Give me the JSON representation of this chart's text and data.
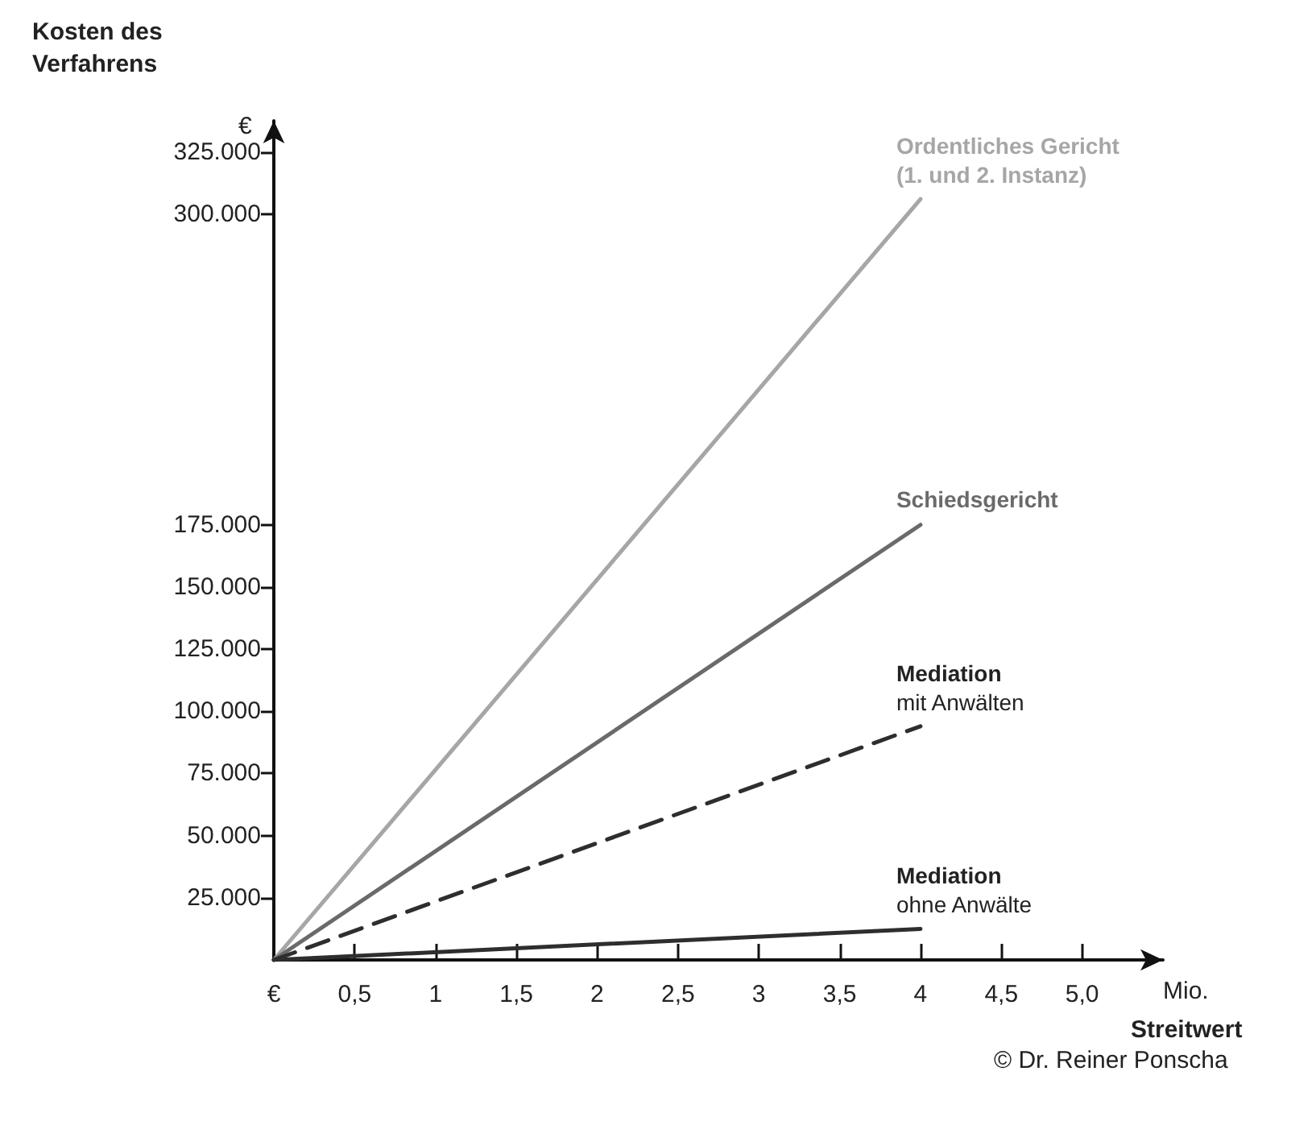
{
  "chart_data": {
    "type": "line",
    "ylabel": "Kosten des Verfahrens",
    "xlabel": "Streitwert",
    "annotations": [
      "€",
      "Mio.",
      "© Dr. Reiner Ponscha"
    ],
    "x": [
      0,
      4
    ],
    "series": [
      {
        "name": "Ordentliches Gericht\n(1. und 2. Instanz)",
        "color": "#a6a6a6",
        "values": [
          0,
          306000
        ],
        "line_style": "solid"
      },
      {
        "name": "Schiedsgericht",
        "color": "#6a6a6a",
        "values": [
          0,
          175000
        ],
        "line_style": "solid"
      },
      {
        "name": "Mediation\nmit Anwälten",
        "color": "#2e2e2e",
        "values": [
          0,
          94000
        ],
        "line_style": "dashed"
      },
      {
        "name": "Mediation\nohne Anwälte",
        "color": "#2e2e2e",
        "values": [
          0,
          12500
        ],
        "line_style": "solid"
      }
    ],
    "xlim": [
      0,
      5.5
    ],
    "xticks": [
      {
        "value": 0,
        "label": "€"
      },
      {
        "value": 0.5,
        "label": "0,5"
      },
      1,
      {
        "value": 1.5,
        "label": "1,5"
      },
      2,
      {
        "value": 2.5,
        "label": "2,5"
      },
      3,
      {
        "value": 3.5,
        "label": "3,5"
      },
      4,
      {
        "value": 4.5,
        "label": "4,5"
      },
      {
        "value": 5,
        "label": "5,0"
      }
    ],
    "ylim": [
      0,
      337500
    ],
    "yticks": [
      {
        "value": 25000,
        "label": "25.000"
      },
      {
        "value": 50000,
        "label": "50.000"
      },
      {
        "value": 75000,
        "label": "75.000"
      },
      {
        "value": 100000,
        "label": "100.000"
      },
      {
        "value": 125000,
        "label": "125.000"
      },
      {
        "value": 150000,
        "label": "150.000"
      },
      {
        "value": 175000,
        "label": "175.000"
      },
      {
        "value": 300000,
        "label": "300.000"
      },
      {
        "value": 325000,
        "label": "325.000"
      }
    ],
    "grid": false,
    "legend": false,
    "marker": "none"
  }
}
